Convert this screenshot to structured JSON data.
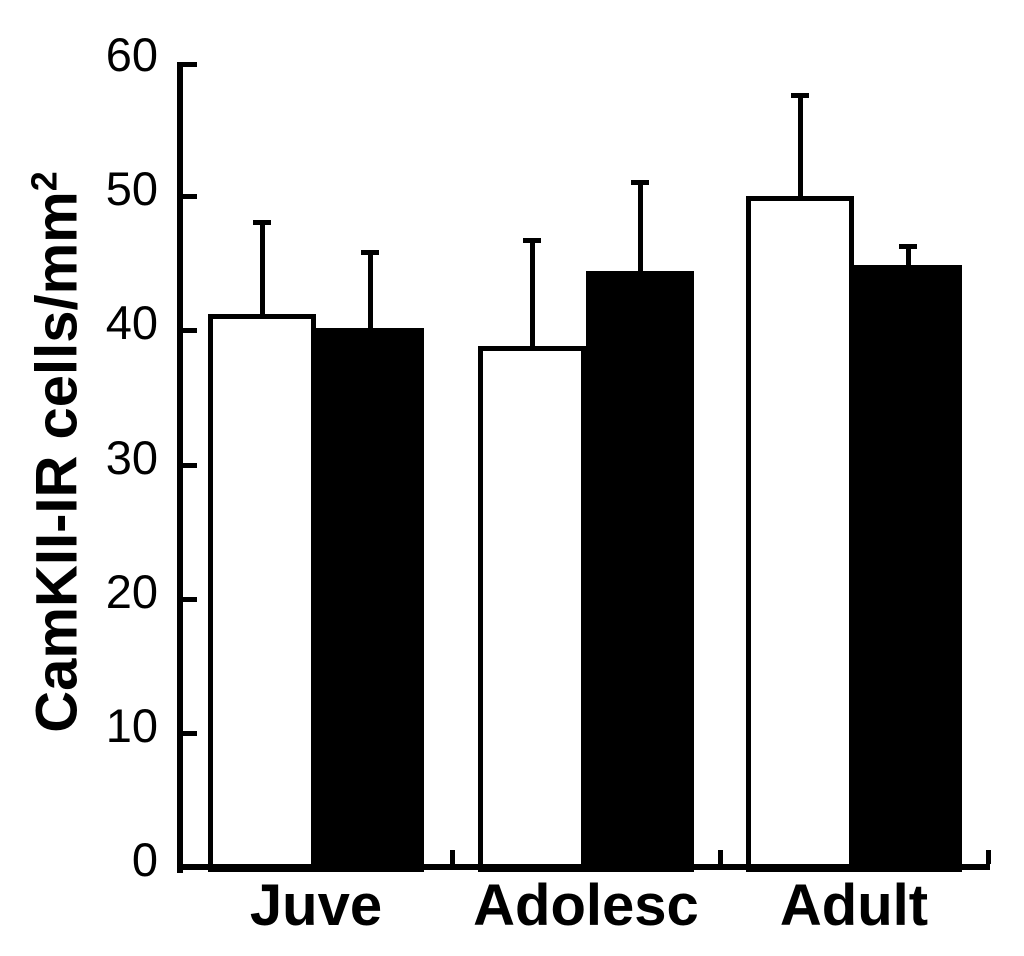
{
  "figure": {
    "background": "#ffffff",
    "line_color": "#000000"
  },
  "chart_data": {
    "type": "bar",
    "title": "",
    "xlabel": "",
    "ylabel": "CamKII-IR cells/mm²",
    "ylabel_main": "CamKII-IR cells/mm",
    "ylabel_sup": "2",
    "categories": [
      "Juve",
      "Adolesc",
      "Adult"
    ],
    "series": [
      {
        "name": "open-bars-white",
        "fill": "#ffffff",
        "outline": "#000000",
        "values": [
          41.2,
          38.8,
          50.0
        ],
        "errors": [
          7.0,
          8.1,
          7.7
        ]
      },
      {
        "name": "filled-bars-black",
        "fill": "#000000",
        "outline": "#000000",
        "values": [
          40.2,
          44.4,
          44.9
        ],
        "errors": [
          5.8,
          6.8,
          1.5
        ]
      }
    ],
    "error_bars": "upper only",
    "ylim": [
      0,
      60
    ],
    "yticks": [
      0,
      10,
      20,
      30,
      40,
      50,
      60
    ],
    "grid": false,
    "legend": "none"
  }
}
